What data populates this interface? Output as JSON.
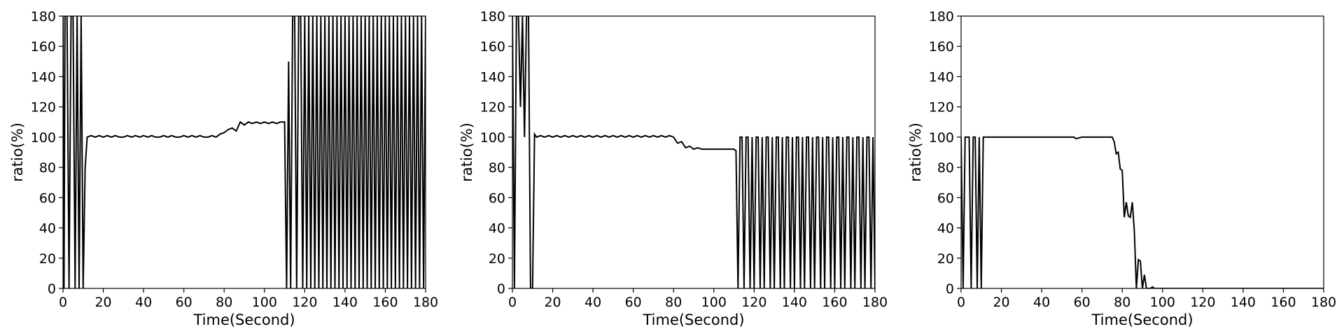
{
  "figure": {
    "line_color": "#000000",
    "background": "#ffffff"
  },
  "chart_data": [
    {
      "type": "line",
      "xlabel": "Time(Second)",
      "ylabel": "ratio(%)",
      "xlim": [
        0,
        180
      ],
      "ylim": [
        0,
        180
      ],
      "xticks": [
        0,
        20,
        40,
        60,
        80,
        100,
        120,
        140,
        160,
        180
      ],
      "yticks": [
        0,
        20,
        40,
        60,
        80,
        100,
        120,
        140,
        160,
        180
      ],
      "grid": false,
      "series": [
        {
          "x": [
            0,
            0.5,
            1,
            2,
            3,
            4,
            5,
            6,
            7,
            8,
            9,
            10,
            11,
            12,
            14,
            16,
            18,
            20,
            22,
            24,
            26,
            28,
            30,
            32,
            34,
            36,
            38,
            40,
            42,
            44,
            46,
            48,
            50,
            52,
            54,
            56,
            58,
            60,
            62,
            64,
            66,
            68,
            70,
            72,
            74,
            76,
            78,
            80,
            82,
            84,
            86,
            88,
            90,
            92,
            94,
            96,
            98,
            100,
            102,
            104,
            106,
            108,
            110,
            111,
            112,
            113,
            114,
            115,
            116,
            117,
            118,
            119,
            120,
            121,
            122,
            123,
            124,
            125,
            126,
            127,
            128,
            129,
            130,
            131,
            132,
            133,
            134,
            135,
            136,
            137,
            138,
            139,
            140,
            141,
            142,
            143,
            144,
            145,
            146,
            147,
            148,
            149,
            150,
            151,
            152,
            153,
            154,
            155,
            156,
            157,
            158,
            159,
            160,
            161,
            162,
            163,
            164,
            165,
            166,
            167,
            168,
            169,
            170,
            171,
            172,
            173,
            174,
            175,
            176,
            177,
            178,
            179,
            180
          ],
          "y": [
            180,
            0,
            180,
            180,
            0,
            180,
            180,
            0,
            180,
            0,
            180,
            0,
            80,
            100,
            101,
            100,
            101,
            100,
            101,
            100,
            101,
            100,
            100,
            101,
            100,
            101,
            100,
            101,
            100,
            101,
            100,
            100,
            101,
            100,
            101,
            100,
            100,
            101,
            100,
            101,
            100,
            101,
            100,
            100,
            101,
            100,
            102,
            103,
            105,
            106,
            104,
            110,
            108,
            110,
            109,
            110,
            109,
            110,
            109,
            110,
            109,
            110,
            110,
            0,
            150,
            0,
            180,
            180,
            0,
            180,
            180,
            0,
            180,
            0,
            180,
            0,
            180,
            0,
            180,
            0,
            180,
            0,
            180,
            0,
            180,
            0,
            180,
            0,
            180,
            0,
            180,
            0,
            180,
            0,
            180,
            0,
            180,
            0,
            180,
            0,
            180,
            0,
            180,
            0,
            180,
            0,
            180,
            0,
            180,
            0,
            180,
            0,
            180,
            0,
            180,
            0,
            180,
            0,
            180,
            0,
            180,
            0,
            180,
            0,
            180,
            0,
            180,
            0,
            180,
            0,
            180,
            0,
            180
          ]
        }
      ]
    },
    {
      "type": "line",
      "xlabel": "Time(Second)",
      "ylabel": "ratio(%)",
      "xlim": [
        0,
        180
      ],
      "ylim": [
        0,
        180
      ],
      "xticks": [
        0,
        20,
        40,
        60,
        80,
        100,
        120,
        140,
        160,
        180
      ],
      "yticks": [
        0,
        20,
        40,
        60,
        80,
        100,
        120,
        140,
        160,
        180
      ],
      "grid": false,
      "series": [
        {
          "x": [
            0,
            1,
            2,
            3,
            4,
            5,
            6,
            7,
            8,
            9,
            10,
            11,
            12,
            14,
            16,
            18,
            20,
            22,
            24,
            26,
            28,
            30,
            32,
            34,
            36,
            38,
            40,
            42,
            44,
            46,
            48,
            50,
            52,
            54,
            56,
            58,
            60,
            62,
            64,
            66,
            68,
            70,
            72,
            74,
            76,
            78,
            80,
            82,
            84,
            86,
            88,
            90,
            92,
            94,
            96,
            98,
            100,
            102,
            104,
            106,
            108,
            110,
            111,
            112,
            113,
            114,
            115,
            116,
            117,
            118,
            119,
            120,
            121,
            122,
            123,
            124,
            125,
            126,
            127,
            128,
            129,
            130,
            131,
            132,
            133,
            134,
            135,
            136,
            137,
            138,
            139,
            140,
            141,
            142,
            143,
            144,
            145,
            146,
            147,
            148,
            149,
            150,
            151,
            152,
            153,
            154,
            155,
            156,
            157,
            158,
            159,
            160,
            161,
            162,
            163,
            164,
            165,
            166,
            167,
            168,
            169,
            170,
            171,
            172,
            173,
            174,
            175,
            176,
            177,
            178,
            179,
            180
          ],
          "y": [
            180,
            0,
            180,
            180,
            120,
            180,
            100,
            180,
            180,
            0,
            0,
            102,
            100,
            101,
            100,
            101,
            100,
            101,
            100,
            101,
            100,
            101,
            100,
            101,
            100,
            101,
            100,
            101,
            100,
            101,
            100,
            101,
            100,
            101,
            100,
            101,
            100,
            101,
            100,
            101,
            100,
            101,
            100,
            101,
            100,
            101,
            100,
            96,
            97,
            93,
            94,
            92,
            93,
            92,
            92,
            92,
            92,
            92,
            92,
            92,
            92,
            92,
            91,
            0,
            100,
            100,
            0,
            100,
            100,
            0,
            100,
            0,
            100,
            100,
            0,
            100,
            0,
            100,
            100,
            0,
            100,
            0,
            100,
            100,
            0,
            100,
            0,
            100,
            100,
            0,
            100,
            0,
            100,
            100,
            0,
            100,
            0,
            100,
            100,
            0,
            100,
            0,
            100,
            100,
            0,
            100,
            0,
            100,
            100,
            0,
            100,
            0,
            100,
            100,
            0,
            100,
            0,
            100,
            100,
            0,
            100,
            0,
            100,
            100,
            0,
            100,
            0,
            100,
            100,
            0,
            100,
            0
          ]
        }
      ]
    },
    {
      "type": "line",
      "xlabel": "Time(Second)",
      "ylabel": "ratio(%)",
      "xlim": [
        0,
        180
      ],
      "ylim": [
        0,
        180
      ],
      "xticks": [
        0,
        20,
        40,
        60,
        80,
        100,
        120,
        140,
        160,
        180
      ],
      "yticks": [
        0,
        20,
        40,
        60,
        80,
        100,
        120,
        140,
        160,
        180
      ],
      "grid": false,
      "series": [
        {
          "x": [
            0,
            1,
            2,
            3,
            4,
            5,
            6,
            7,
            8,
            9,
            10,
            11,
            12,
            20,
            30,
            40,
            50,
            56,
            57,
            60,
            70,
            75,
            76,
            77,
            78,
            79,
            80,
            81,
            82,
            83,
            84,
            85,
            86,
            87,
            88,
            89,
            90,
            91,
            92,
            93,
            94,
            95,
            96,
            97,
            98,
            100,
            110,
            120,
            130,
            140,
            150,
            160,
            170,
            180
          ],
          "y": [
            100,
            0,
            100,
            100,
            100,
            0,
            100,
            100,
            0,
            100,
            0,
            100,
            100,
            100,
            100,
            100,
            100,
            100,
            99,
            100,
            100,
            100,
            97,
            89,
            90,
            79,
            78,
            47,
            57,
            48,
            47,
            57,
            38,
            0,
            19,
            18,
            0,
            9,
            0,
            0,
            0,
            1,
            0,
            0,
            0,
            0,
            0,
            0,
            0,
            0,
            0,
            0,
            0,
            0
          ]
        }
      ]
    }
  ]
}
